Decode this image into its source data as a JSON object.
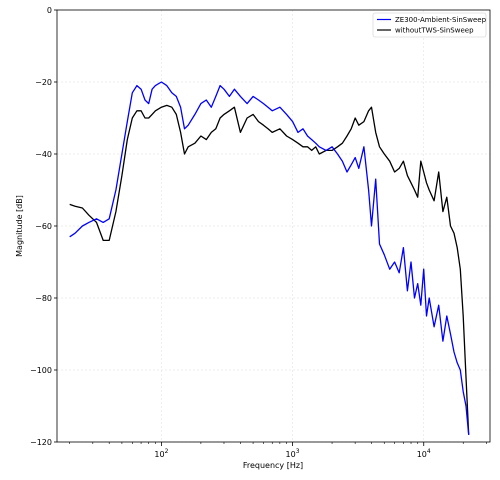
{
  "chart_data": {
    "type": "line",
    "xlabel": "Frequency [Hz]",
    "ylabel": "Magnitude [dB]",
    "xscale": "log",
    "xlim": [
      16,
      32000
    ],
    "ylim": [
      -120,
      0
    ],
    "grid": true,
    "legend_position": "top-right",
    "y_ticks": [
      0,
      -20,
      -40,
      -60,
      -80,
      -100,
      -120
    ],
    "y_tick_labels": [
      "0",
      "−20",
      "−40",
      "−60",
      "−80",
      "−100",
      "−120"
    ],
    "x_ticks": [
      100,
      1000,
      10000
    ],
    "x_tick_bases": [
      "10",
      "10",
      "10"
    ],
    "x_tick_exps": [
      "2",
      "3",
      "4"
    ],
    "series": [
      {
        "name": "ZE300-Ambient-SinSweep",
        "color": "#0000ff",
        "x": [
          20,
          22,
          25,
          28,
          32,
          36,
          40,
          45,
          50,
          55,
          60,
          65,
          70,
          75,
          80,
          85,
          90,
          100,
          110,
          120,
          130,
          140,
          150,
          160,
          180,
          200,
          220,
          240,
          260,
          280,
          300,
          330,
          360,
          400,
          450,
          500,
          550,
          600,
          650,
          700,
          800,
          900,
          1000,
          1100,
          1200,
          1300,
          1400,
          1500,
          1600,
          1800,
          2000,
          2200,
          2400,
          2600,
          2800,
          3000,
          3200,
          3500,
          3800,
          4000,
          4300,
          4600,
          5000,
          5500,
          6000,
          6500,
          7000,
          7500,
          8000,
          8500,
          9000,
          9500,
          10000,
          10500,
          11000,
          12000,
          13000,
          14000,
          15000,
          16000,
          17000,
          18000,
          19000,
          20000,
          21000,
          22000
        ],
        "y": [
          -63,
          -62,
          -60,
          -59,
          -58,
          -59,
          -58,
          -50,
          -40,
          -31,
          -23,
          -21,
          -22,
          -25,
          -26,
          -22,
          -21,
          -20,
          -21,
          -23,
          -24,
          -27,
          -33,
          -32,
          -29,
          -26,
          -25,
          -27,
          -24,
          -21,
          -22,
          -24,
          -22,
          -24,
          -26,
          -24,
          -25,
          -26,
          -27,
          -28,
          -27,
          -29,
          -31,
          -34,
          -33,
          -35,
          -36,
          -37,
          -38,
          -39,
          -38,
          -40,
          -42,
          -45,
          -43,
          -41,
          -44,
          -38,
          -50,
          -60,
          -47,
          -65,
          -68,
          -72,
          -70,
          -73,
          -66,
          -78,
          -70,
          -80,
          -76,
          -82,
          -72,
          -85,
          -80,
          -88,
          -82,
          -92,
          -85,
          -90,
          -95,
          -98,
          -100,
          -106,
          -110,
          -118
        ]
      },
      {
        "name": "withoutTWS-SinSweep",
        "color": "#000000",
        "x": [
          20,
          22,
          25,
          28,
          32,
          36,
          40,
          45,
          50,
          55,
          60,
          65,
          70,
          75,
          80,
          85,
          90,
          100,
          110,
          120,
          130,
          140,
          150,
          160,
          180,
          200,
          220,
          240,
          260,
          280,
          300,
          330,
          360,
          400,
          450,
          500,
          550,
          600,
          650,
          700,
          800,
          900,
          1000,
          1100,
          1200,
          1300,
          1400,
          1500,
          1600,
          1800,
          2000,
          2200,
          2400,
          2600,
          2800,
          3000,
          3200,
          3500,
          3800,
          4000,
          4300,
          4600,
          5000,
          5500,
          6000,
          6500,
          7000,
          7500,
          8000,
          8500,
          9000,
          9500,
          10000,
          10500,
          11000,
          12000,
          13000,
          14000,
          15000,
          16000,
          17000,
          18000,
          19000,
          20000,
          21000,
          22000
        ],
        "y": [
          -54,
          -54.5,
          -55,
          -57,
          -59,
          -64,
          -64,
          -56,
          -46,
          -36,
          -30,
          -28,
          -28,
          -30,
          -30,
          -29,
          -28,
          -27,
          -26.5,
          -27,
          -29,
          -34,
          -40,
          -38,
          -37,
          -35,
          -36,
          -34,
          -33,
          -30,
          -29,
          -28,
          -27,
          -34,
          -30,
          -29,
          -31,
          -32,
          -33,
          -34,
          -33,
          -35,
          -36,
          -37,
          -38,
          -38,
          -39,
          -38,
          -40,
          -39,
          -39,
          -38,
          -37,
          -35,
          -33,
          -30,
          -32,
          -31,
          -28,
          -27,
          -34,
          -38,
          -40,
          -42,
          -45,
          -44,
          -42,
          -46,
          -48,
          -50,
          -52,
          -42,
          -45,
          -48,
          -50,
          -53,
          -45,
          -56,
          -52,
          -60,
          -62,
          -66,
          -72,
          -85,
          -102,
          -118
        ]
      }
    ]
  }
}
